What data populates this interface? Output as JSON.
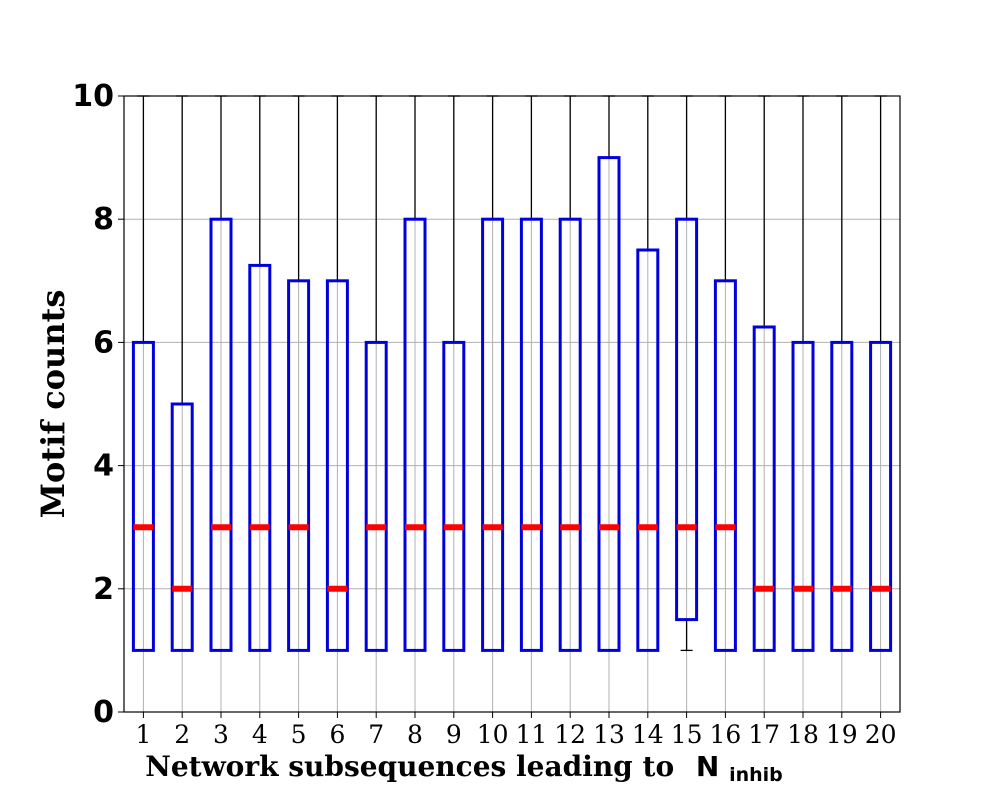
{
  "chart_data": {
    "type": "box",
    "xlabel_main": "Network subsequences leading to",
    "xlabel_symbol": "N",
    "xlabel_subscript": "inhib",
    "ylabel": "Motif counts",
    "ylim": [
      0,
      10
    ],
    "yticks": [
      "0",
      "2",
      "4",
      "6",
      "8",
      "10"
    ],
    "grid": true,
    "colors": {
      "box": "#0000dd",
      "median": "#ff0000",
      "whisker": "#000000",
      "grid": "#b0b0b0"
    },
    "categories": [
      "1",
      "2",
      "3",
      "4",
      "5",
      "6",
      "7",
      "8",
      "9",
      "10",
      "11",
      "12",
      "13",
      "14",
      "15",
      "16",
      "17",
      "18",
      "19",
      "20"
    ],
    "boxes": [
      {
        "q1": 1,
        "median": 3,
        "q3": 6,
        "whisker_low": 1,
        "whisker_high": 10
      },
      {
        "q1": 1,
        "median": 2,
        "q3": 5,
        "whisker_low": 1,
        "whisker_high": 10
      },
      {
        "q1": 1,
        "median": 3,
        "q3": 8,
        "whisker_low": 1,
        "whisker_high": 10
      },
      {
        "q1": 1,
        "median": 3,
        "q3": 7.25,
        "whisker_low": 1,
        "whisker_high": 10
      },
      {
        "q1": 1,
        "median": 3,
        "q3": 7,
        "whisker_low": 1,
        "whisker_high": 10
      },
      {
        "q1": 1,
        "median": 2,
        "q3": 7,
        "whisker_low": 1,
        "whisker_high": 10
      },
      {
        "q1": 1,
        "median": 3,
        "q3": 6,
        "whisker_low": 1,
        "whisker_high": 10
      },
      {
        "q1": 1,
        "median": 3,
        "q3": 8,
        "whisker_low": 1,
        "whisker_high": 10
      },
      {
        "q1": 1,
        "median": 3,
        "q3": 6,
        "whisker_low": 1,
        "whisker_high": 10
      },
      {
        "q1": 1,
        "median": 3,
        "q3": 8,
        "whisker_low": 1,
        "whisker_high": 10
      },
      {
        "q1": 1,
        "median": 3,
        "q3": 8,
        "whisker_low": 1,
        "whisker_high": 10
      },
      {
        "q1": 1,
        "median": 3,
        "q3": 8,
        "whisker_low": 1,
        "whisker_high": 10
      },
      {
        "q1": 1,
        "median": 3,
        "q3": 9,
        "whisker_low": 1,
        "whisker_high": 10
      },
      {
        "q1": 1,
        "median": 3,
        "q3": 7.5,
        "whisker_low": 1,
        "whisker_high": 10
      },
      {
        "q1": 1.5,
        "median": 3,
        "q3": 8,
        "whisker_low": 1,
        "whisker_high": 10
      },
      {
        "q1": 1,
        "median": 3,
        "q3": 7,
        "whisker_low": 1,
        "whisker_high": 10
      },
      {
        "q1": 1,
        "median": 2,
        "q3": 6.25,
        "whisker_low": 1,
        "whisker_high": 10
      },
      {
        "q1": 1,
        "median": 2,
        "q3": 6,
        "whisker_low": 1,
        "whisker_high": 10
      },
      {
        "q1": 1,
        "median": 2,
        "q3": 6,
        "whisker_low": 1,
        "whisker_high": 10
      },
      {
        "q1": 1,
        "median": 2,
        "q3": 6,
        "whisker_low": 1,
        "whisker_high": 10
      }
    ]
  }
}
